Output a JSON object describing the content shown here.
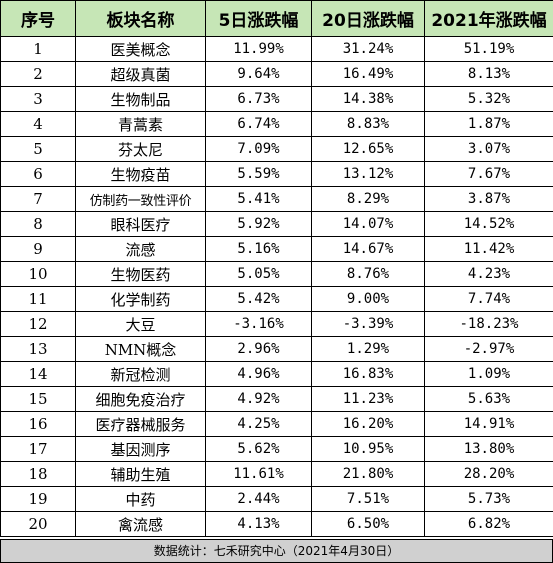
{
  "table": {
    "headers": [
      "序号",
      "板块名称",
      "5日涨跌幅",
      "20日涨跌幅",
      "2021年涨跌幅"
    ],
    "rows": [
      {
        "id": "1",
        "name": "医美概念",
        "d5": "11.99%",
        "d20": "31.24%",
        "y2021": "51.19%"
      },
      {
        "id": "2",
        "name": "超级真菌",
        "d5": "9.64%",
        "d20": "16.49%",
        "y2021": "8.13%"
      },
      {
        "id": "3",
        "name": "生物制品",
        "d5": "6.73%",
        "d20": "14.38%",
        "y2021": "5.32%"
      },
      {
        "id": "4",
        "name": "青蒿素",
        "d5": "6.74%",
        "d20": "8.83%",
        "y2021": "1.87%"
      },
      {
        "id": "5",
        "name": "芬太尼",
        "d5": "7.09%",
        "d20": "12.65%",
        "y2021": "3.07%"
      },
      {
        "id": "6",
        "name": "生物疫苗",
        "d5": "5.59%",
        "d20": "13.12%",
        "y2021": "7.67%"
      },
      {
        "id": "7",
        "name": "仿制药一致性评价",
        "d5": "5.41%",
        "d20": "8.29%",
        "y2021": "3.87%"
      },
      {
        "id": "8",
        "name": "眼科医疗",
        "d5": "5.92%",
        "d20": "14.07%",
        "y2021": "14.52%"
      },
      {
        "id": "9",
        "name": "流感",
        "d5": "5.16%",
        "d20": "14.67%",
        "y2021": "11.42%"
      },
      {
        "id": "10",
        "name": "生物医药",
        "d5": "5.05%",
        "d20": "8.76%",
        "y2021": "4.23%"
      },
      {
        "id": "11",
        "name": "化学制药",
        "d5": "5.42%",
        "d20": "9.00%",
        "y2021": "7.74%"
      },
      {
        "id": "12",
        "name": "大豆",
        "d5": "-3.16%",
        "d20": "-3.39%",
        "y2021": "-18.23%"
      },
      {
        "id": "13",
        "name": "NMN概念",
        "d5": "2.96%",
        "d20": "1.29%",
        "y2021": "-2.97%"
      },
      {
        "id": "14",
        "name": "新冠检测",
        "d5": "4.96%",
        "d20": "16.83%",
        "y2021": "1.09%"
      },
      {
        "id": "15",
        "name": "细胞免疫治疗",
        "d5": "4.92%",
        "d20": "11.23%",
        "y2021": "5.63%"
      },
      {
        "id": "16",
        "name": "医疗器械服务",
        "d5": "4.25%",
        "d20": "16.20%",
        "y2021": "14.91%"
      },
      {
        "id": "17",
        "name": "基因测序",
        "d5": "5.62%",
        "d20": "10.95%",
        "y2021": "13.80%"
      },
      {
        "id": "18",
        "name": "辅助生殖",
        "d5": "11.61%",
        "d20": "21.80%",
        "y2021": "28.20%"
      },
      {
        "id": "19",
        "name": "中药",
        "d5": "2.44%",
        "d20": "7.51%",
        "y2021": "5.73%"
      },
      {
        "id": "20",
        "name": "禽流感",
        "d5": "4.13%",
        "d20": "6.50%",
        "y2021": "6.82%"
      }
    ]
  },
  "footer": {
    "text": "数据统计：七禾研究中心（2021年4月30日）"
  },
  "colors": {
    "header_bg": "#c6e6b6",
    "footer_bg": "#d0d0d0",
    "border": "#000000"
  }
}
